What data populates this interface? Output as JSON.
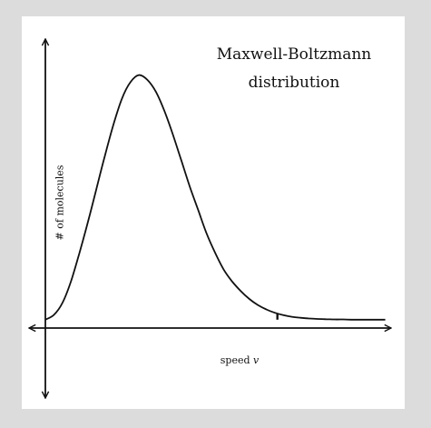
{
  "chart_data": {
    "type": "line",
    "title_lines": [
      "Maxwell-Boltzmann",
      "distribution"
    ],
    "xlabel_text": "speed ",
    "xlabel_var": "v",
    "ylabel": "# of molecules",
    "xlim": [
      0,
      4.1
    ],
    "ylim": [
      -0.33,
      1.22
    ],
    "series": [
      {
        "x": [
          0,
          0.1,
          0.2,
          0.3,
          0.4,
          0.5,
          0.6,
          0.7,
          0.8,
          0.9,
          1.0,
          1.1,
          1.2,
          1.3,
          1.4,
          1.5,
          1.6,
          1.7,
          1.8,
          1.9,
          2.0,
          2.1,
          2.2,
          2.3,
          2.4,
          2.5,
          2.6,
          2.7,
          2.8,
          2.9,
          3.0,
          3.1,
          3.2,
          3.3,
          3.4,
          3.5,
          3.6,
          3.7,
          3.8,
          3.9,
          4.0
        ],
        "y": [
          0,
          0.02,
          0.07,
          0.16,
          0.28,
          0.41,
          0.55,
          0.69,
          0.82,
          0.93,
          1.0,
          1.03,
          1.01,
          0.96,
          0.88,
          0.78,
          0.67,
          0.56,
          0.46,
          0.36,
          0.28,
          0.21,
          0.16,
          0.12,
          0.087,
          0.062,
          0.043,
          0.029,
          0.019,
          0.012,
          0.008,
          0.005,
          0.003,
          0.002,
          0.001,
          0.001,
          0,
          0,
          0,
          0,
          0
        ]
      }
    ],
    "marker_x": 2.73,
    "grid": false,
    "legend": "none"
  }
}
